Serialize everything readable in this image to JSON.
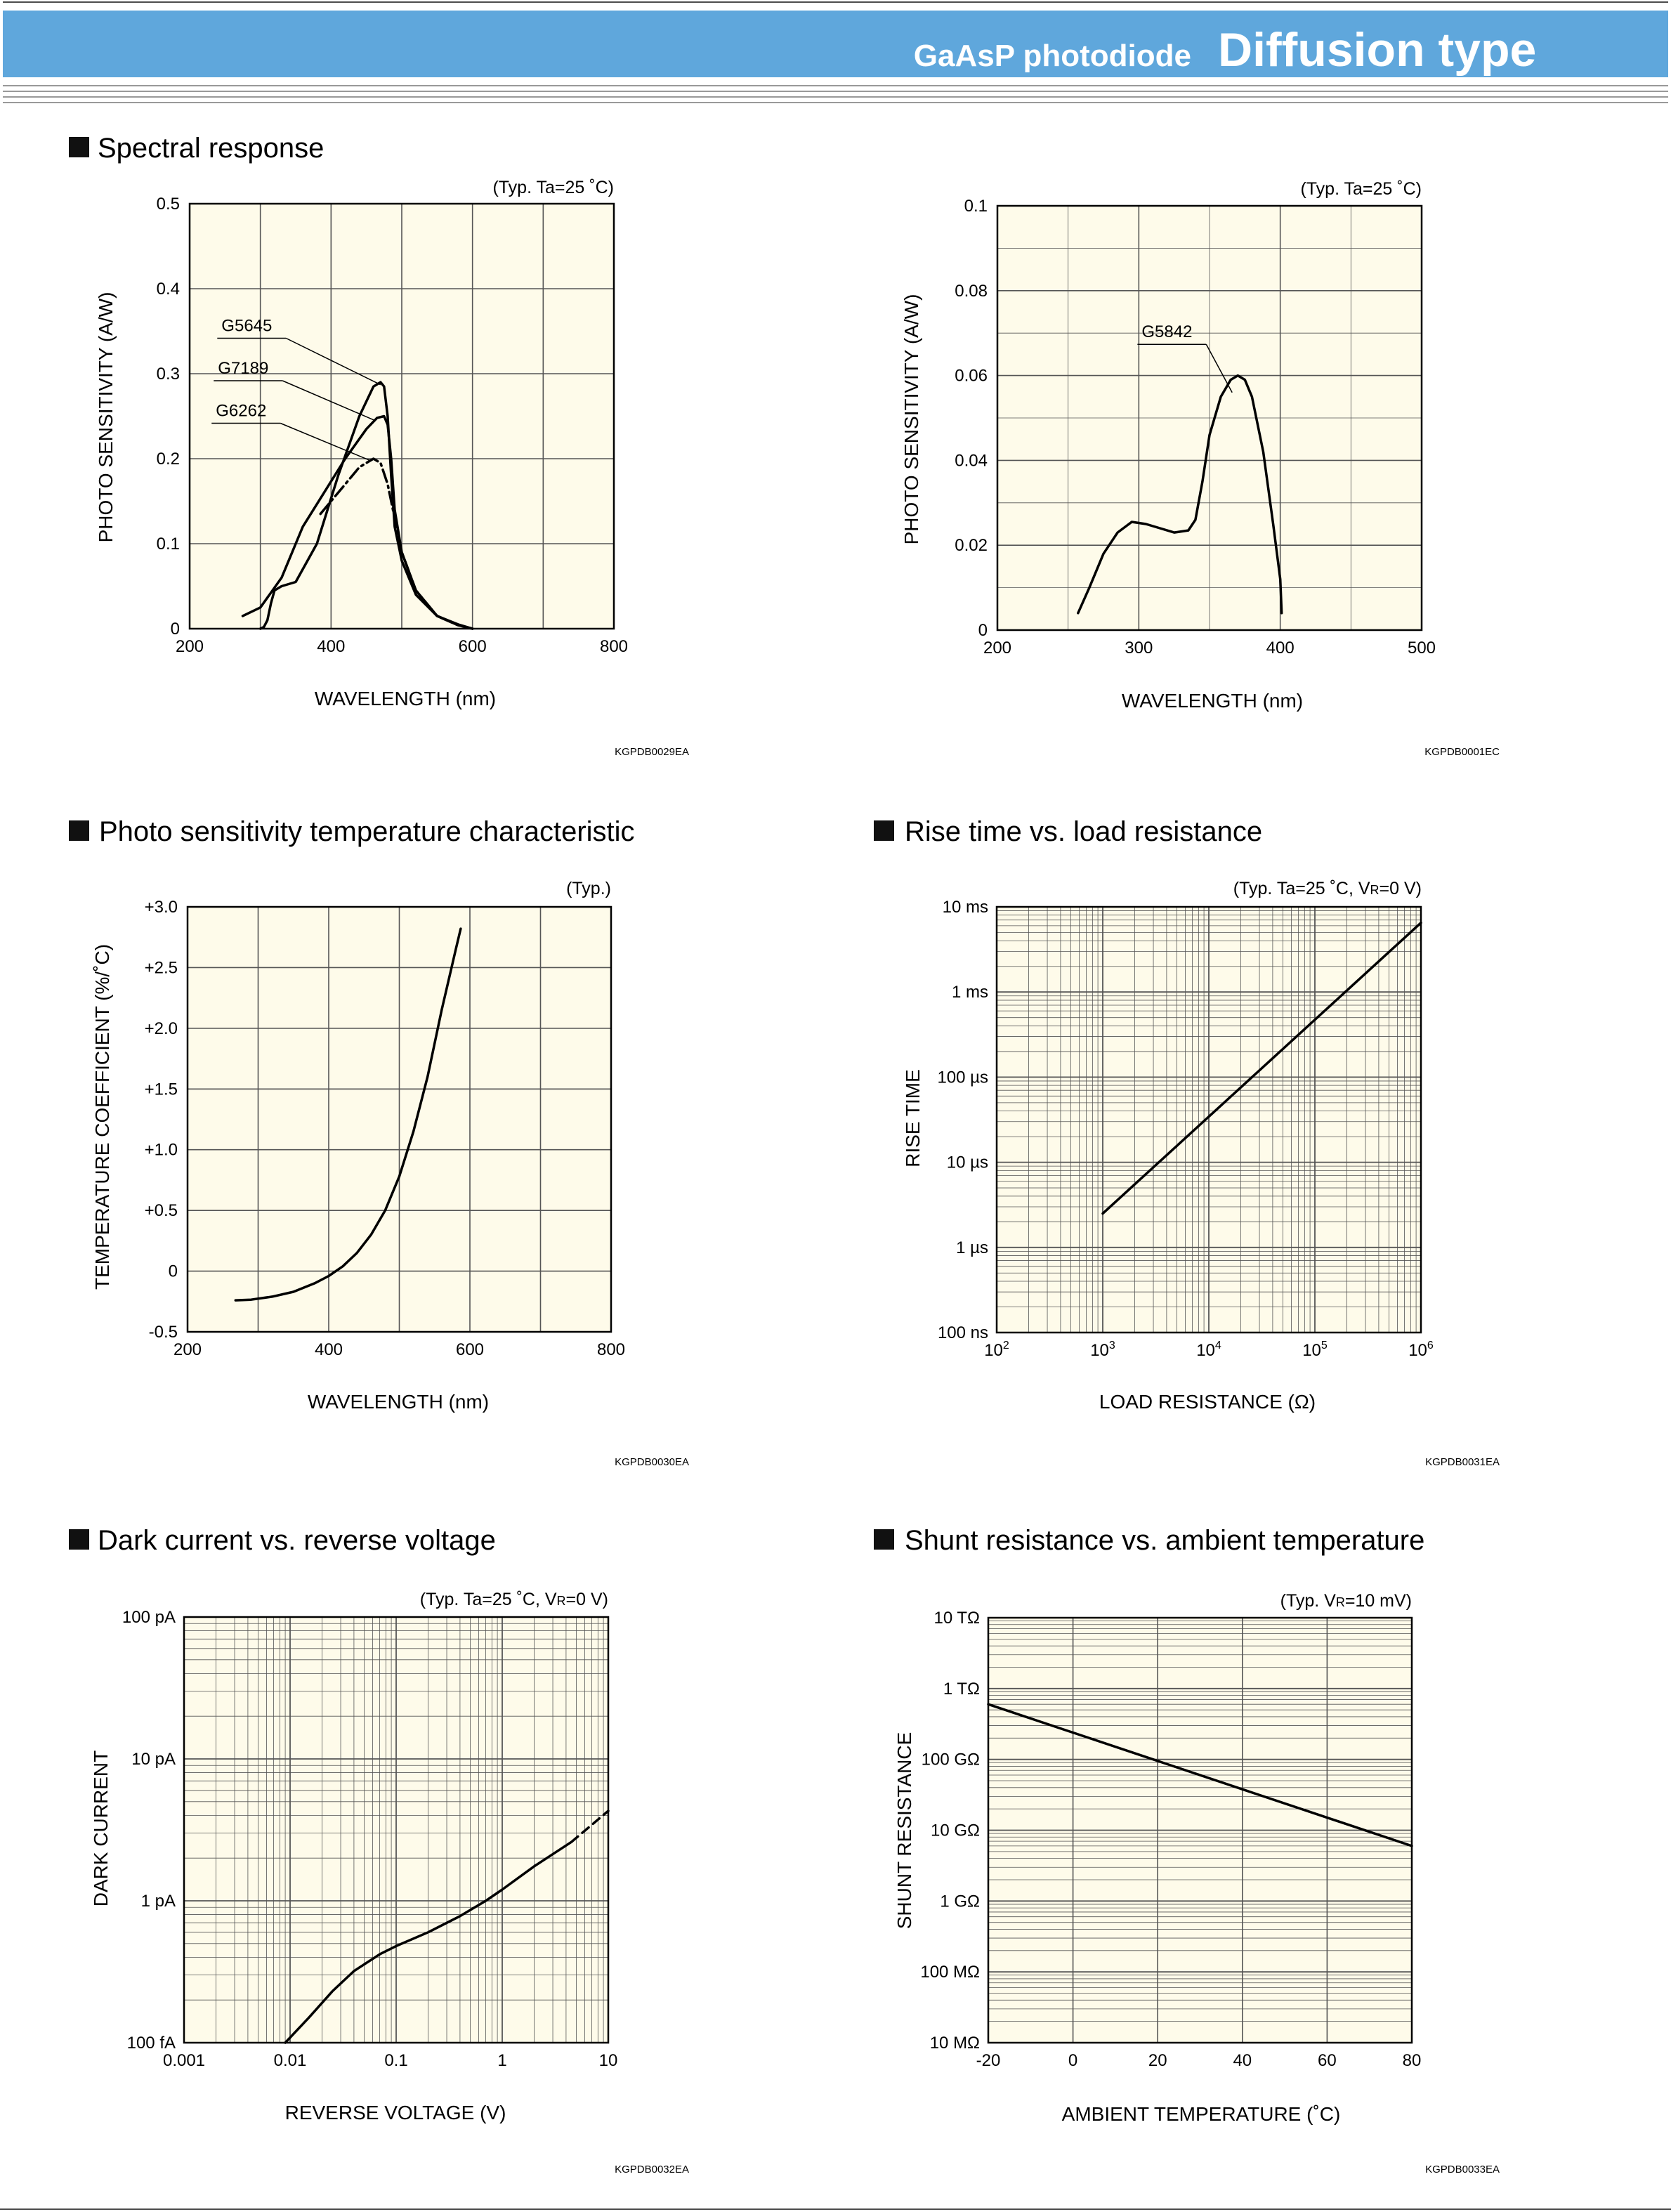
{
  "header": {
    "subtitle": "GaAsP photodiode",
    "title": "Diffusion type",
    "band_color": "#5fa7dc"
  },
  "colors": {
    "plot_bg": "#fefbea",
    "grid": "#555555",
    "curve": "#000000"
  },
  "panels": [
    {
      "heading": "Spectral response",
      "condition": "(Typ. Ta=25 ˚C)",
      "code": "KGPDB0029EA",
      "xlabel": "WAVELENGTH (nm)",
      "ylabel": "PHOTO SENSITIVITY (A/W)",
      "xticks": [
        "200",
        "400",
        "600",
        "800"
      ],
      "yticks": [
        "0",
        "0.1",
        "0.2",
        "0.3",
        "0.4",
        "0.5"
      ]
    },
    {
      "heading": "",
      "condition": "(Typ. Ta=25 ˚C)",
      "code": "KGPDB0001EC",
      "xlabel": "WAVELENGTH (nm)",
      "ylabel": "PHOTO SENSITIVITY (A/W)",
      "xticks": [
        "200",
        "300",
        "400",
        "500"
      ],
      "yticks": [
        "0",
        "0.02",
        "0.04",
        "0.06",
        "0.08",
        "0.1"
      ]
    },
    {
      "heading": "Photo sensitivity temperature characteristic",
      "condition": "(Typ.)",
      "code": "KGPDB0030EA",
      "xlabel": "WAVELENGTH (nm)",
      "ylabel": "TEMPERATURE COEFFICIENT (%/˚C)",
      "xticks": [
        "200",
        "400",
        "600",
        "800"
      ],
      "yticks": [
        "-0.5",
        "0",
        "+0.5",
        "+1.0",
        "+1.5",
        "+2.0",
        "+2.5",
        "+3.0"
      ]
    },
    {
      "heading": "Rise time vs. load resistance",
      "condition_pre": "(Typ. Ta=25 ˚C, V",
      "condition_sub": "R",
      "condition_post": "=0 V)",
      "code": "KGPDB0031EA",
      "xlabel": "LOAD RESISTANCE (Ω)",
      "ylabel": "RISE TIME",
      "xtick_base": "10",
      "xtick_exps": [
        "2",
        "3",
        "4",
        "5",
        "6"
      ],
      "yticks": [
        "100 ns",
        "1 µs",
        "10 µs",
        "100 µs",
        "1 ms",
        "10 ms"
      ]
    },
    {
      "heading": "Dark current vs. reverse voltage",
      "condition_pre": "(Typ. Ta=25 ˚C, V",
      "condition_sub": "R",
      "condition_post": "=0 V)",
      "code": "KGPDB0032EA",
      "xlabel": "REVERSE VOLTAGE (V)",
      "ylabel": "DARK CURRENT",
      "xticks": [
        "0.001",
        "0.01",
        "0.1",
        "1",
        "10"
      ],
      "yticks": [
        "100 fA",
        "1 pA",
        "10 pA",
        "100 pA"
      ]
    },
    {
      "heading": "Shunt resistance vs. ambient temperature",
      "condition_pre": "(Typ. V",
      "condition_sub": "R",
      "condition_post": "=10 mV)",
      "code": "KGPDB0033EA",
      "xlabel": "AMBIENT TEMPERATURE (˚C)",
      "ylabel": "SHUNT RESISTANCE",
      "xticks": [
        "-20",
        "0",
        "20",
        "40",
        "60",
        "80"
      ],
      "yticks": [
        "10 MΩ",
        "100 MΩ",
        "1 GΩ",
        "10 GΩ",
        "100 GΩ",
        "1 TΩ",
        "10 TΩ"
      ]
    }
  ],
  "chart_data": [
    {
      "type": "line",
      "title": "Spectral response",
      "xlabel": "WAVELENGTH (nm)",
      "ylabel": "PHOTO SENSITIVITY (A/W)",
      "xlim": [
        200,
        800
      ],
      "ylim": [
        0,
        0.5
      ],
      "grid": true,
      "series": [
        {
          "name": "G5645",
          "style": "solid",
          "label_at": [
            245,
            0.35
          ],
          "x": [
            300,
            305,
            310,
            315,
            320,
            330,
            350,
            380,
            410,
            440,
            460,
            470,
            475,
            480,
            485,
            490,
            500,
            520,
            550,
            580,
            600
          ],
          "y": [
            0,
            0.002,
            0.01,
            0.03,
            0.045,
            0.05,
            0.055,
            0.1,
            0.18,
            0.25,
            0.285,
            0.29,
            0.285,
            0.25,
            0.18,
            0.12,
            0.08,
            0.04,
            0.015,
            0.005,
            0
          ]
        },
        {
          "name": "G7189",
          "style": "solid",
          "label_at": [
            240,
            0.3
          ],
          "x": [
            275,
            300,
            330,
            360,
            390,
            420,
            450,
            465,
            475,
            480,
            485,
            490,
            500,
            520,
            550,
            580,
            600
          ],
          "y": [
            0.015,
            0.025,
            0.06,
            0.12,
            0.16,
            0.2,
            0.235,
            0.248,
            0.25,
            0.24,
            0.2,
            0.14,
            0.09,
            0.045,
            0.015,
            0.004,
            0
          ]
        },
        {
          "name": "G6262",
          "style": "dashdot",
          "label_at": [
            237,
            0.25
          ],
          "x": [
            385,
            400,
            420,
            440,
            460,
            470,
            480,
            490,
            500,
            520,
            550,
            580,
            600
          ],
          "y": [
            0.135,
            0.15,
            0.17,
            0.19,
            0.2,
            0.195,
            0.17,
            0.13,
            0.09,
            0.045,
            0.015,
            0.004,
            0
          ]
        }
      ]
    },
    {
      "type": "line",
      "xlabel": "WAVELENGTH (nm)",
      "ylabel": "PHOTO SENSITIVITY (A/W)",
      "xlim": [
        200,
        500
      ],
      "ylim": [
        0,
        0.1
      ],
      "grid": true,
      "series": [
        {
          "name": "G5842",
          "style": "solid",
          "label_at": [
            302,
            0.069
          ],
          "x": [
            257,
            265,
            275,
            285,
            295,
            305,
            315,
            325,
            335,
            340,
            345,
            350,
            358,
            365,
            370,
            375,
            380,
            388,
            395,
            400,
            401
          ],
          "y": [
            0.004,
            0.01,
            0.018,
            0.023,
            0.0255,
            0.025,
            0.024,
            0.023,
            0.0235,
            0.026,
            0.035,
            0.046,
            0.055,
            0.059,
            0.06,
            0.059,
            0.055,
            0.042,
            0.025,
            0.012,
            0.004
          ]
        }
      ]
    },
    {
      "type": "line",
      "xlabel": "WAVELENGTH (nm)",
      "ylabel": "TEMPERATURE COEFFICIENT (%/˚C)",
      "xlim": [
        200,
        800
      ],
      "ylim": [
        -0.5,
        3.0
      ],
      "grid": true,
      "series": [
        {
          "style": "solid",
          "x": [
            268,
            290,
            320,
            350,
            380,
            400,
            420,
            440,
            460,
            480,
            500,
            520,
            540,
            560,
            580,
            587
          ],
          "y": [
            -0.24,
            -0.235,
            -0.21,
            -0.17,
            -0.1,
            -0.04,
            0.04,
            0.15,
            0.3,
            0.5,
            0.78,
            1.15,
            1.6,
            2.15,
            2.65,
            2.82
          ]
        }
      ]
    },
    {
      "type": "line",
      "xlabel": "LOAD RESISTANCE (Ω)",
      "ylabel": "RISE TIME",
      "xscale": "log",
      "yscale": "log",
      "xlim": [
        100,
        1000000
      ],
      "ylim": [
        1e-07,
        0.01
      ],
      "grid": true,
      "series": [
        {
          "style": "solid",
          "x": [
            1000,
            1000000
          ],
          "y": [
            2.5e-06,
            0.0065
          ]
        }
      ]
    },
    {
      "type": "line",
      "xlabel": "REVERSE VOLTAGE (V)",
      "ylabel": "DARK CURRENT",
      "xscale": "log",
      "yscale": "log",
      "xlim": [
        0.001,
        10
      ],
      "ylim": [
        1e-13,
        1e-10
      ],
      "grid": true,
      "series": [
        {
          "style": "solid",
          "x": [
            0.009,
            0.015,
            0.025,
            0.04,
            0.07,
            0.1,
            0.2,
            0.4,
            0.7,
            1,
            2,
            4.5
          ],
          "y": [
            1e-13,
            1.5e-13,
            2.3e-13,
            3.2e-13,
            4.2e-13,
            4.8e-13,
            6e-13,
            7.8e-13,
            1e-12,
            1.2e-12,
            1.75e-12,
            2.6e-12
          ]
        },
        {
          "style": "dashed",
          "x": [
            4.5,
            10
          ],
          "y": [
            2.6e-12,
            4.3e-12
          ]
        }
      ]
    },
    {
      "type": "line",
      "xlabel": "AMBIENT TEMPERATURE (˚C)",
      "ylabel": "SHUNT RESISTANCE",
      "yscale": "log",
      "xlim": [
        -20,
        80
      ],
      "ylim": [
        10000000,
        10000000000000
      ],
      "grid": true,
      "series": [
        {
          "style": "solid",
          "x": [
            -20,
            80
          ],
          "y": [
            600000000000,
            6000000000
          ]
        }
      ]
    }
  ]
}
